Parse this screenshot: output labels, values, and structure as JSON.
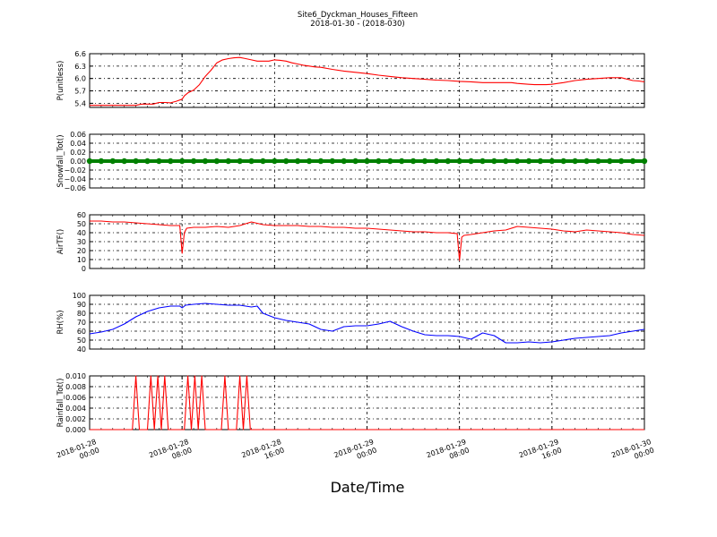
{
  "figure": {
    "title_line1": "Site6_Dyckman_Houses_Fifteen",
    "title_line2": "2018-01-30 - (2018-030)",
    "xlabel": "Date/Time"
  },
  "x_axis": {
    "ticks": [
      {
        "line1": "2018-01-28",
        "line2": "00:00",
        "hour": 0
      },
      {
        "line1": "2018-01-28",
        "line2": "08:00",
        "hour": 8
      },
      {
        "line1": "2018-01-28",
        "line2": "16:00",
        "hour": 16
      },
      {
        "line1": "2018-01-29",
        "line2": "00:00",
        "hour": 24
      },
      {
        "line1": "2018-01-29",
        "line2": "08:00",
        "hour": 32
      },
      {
        "line1": "2018-01-29",
        "line2": "16:00",
        "hour": 40
      },
      {
        "line1": "2018-01-30",
        "line2": "00:00",
        "hour": 48
      }
    ]
  },
  "colors": {
    "red": "#ff0000",
    "green": "#008000",
    "blue": "#0000ff",
    "grid": "#000000"
  },
  "chart_data": [
    {
      "type": "line",
      "ylabel": "P(unitless)",
      "ylim": [
        5.3,
        6.6
      ],
      "yticks": [
        5.4,
        5.7,
        6.0,
        6.3,
        6.6
      ],
      "ytick_labels": [
        "5.4",
        "5.7",
        "6.0",
        "6.3",
        "6.6"
      ],
      "grid": true,
      "color": "#ff0000",
      "x_hours": [
        0,
        1,
        2,
        3,
        3.8,
        4,
        4.5,
        5,
        5.5,
        6,
        6.3,
        6.6,
        7,
        7.5,
        8,
        8.2,
        8.5,
        9,
        9.5,
        10,
        10.5,
        11,
        11.5,
        12,
        12.5,
        13,
        13.5,
        14,
        14.5,
        15,
        15.5,
        16,
        16.5,
        17,
        17.5,
        18,
        18.5,
        19,
        19.5,
        20,
        21,
        22,
        23,
        24,
        25,
        26,
        27,
        28,
        29,
        30,
        31,
        32,
        33,
        34,
        35,
        36,
        36.5,
        37,
        37.5,
        38,
        38.5,
        39,
        39.5,
        40,
        40.5,
        41,
        42,
        43,
        44,
        45,
        46,
        47,
        47.5,
        48
      ],
      "values": [
        5.35,
        5.35,
        5.35,
        5.35,
        5.35,
        5.35,
        5.38,
        5.38,
        5.38,
        5.42,
        5.42,
        5.42,
        5.41,
        5.45,
        5.5,
        5.58,
        5.65,
        5.72,
        5.85,
        6.05,
        6.2,
        6.38,
        6.45,
        6.48,
        6.5,
        6.51,
        6.48,
        6.45,
        6.42,
        6.42,
        6.42,
        6.45,
        6.44,
        6.42,
        6.38,
        6.35,
        6.32,
        6.3,
        6.28,
        6.27,
        6.22,
        6.18,
        6.15,
        6.12,
        6.08,
        6.05,
        6.02,
        6.0,
        5.98,
        5.96,
        5.95,
        5.93,
        5.92,
        5.9,
        5.9,
        5.9,
        5.9,
        5.88,
        5.87,
        5.86,
        5.85,
        5.85,
        5.85,
        5.86,
        5.88,
        5.9,
        5.95,
        5.98,
        6.0,
        6.02,
        6.02,
        5.95,
        5.94,
        5.92
      ]
    },
    {
      "type": "scatter",
      "ylabel": "Snowfall_Tot()",
      "ylim": [
        -0.06,
        0.06
      ],
      "yticks": [
        -0.06,
        -0.04,
        -0.02,
        0.0,
        0.02,
        0.04,
        0.06
      ],
      "ytick_labels": [
        "−0.06",
        "−0.04",
        "−0.02",
        "0.00",
        "0.02",
        "0.04",
        "0.06"
      ],
      "grid": true,
      "color": "#008000",
      "x_hours": [
        0,
        1,
        2,
        3,
        4,
        5,
        6,
        7,
        8,
        9,
        10,
        11,
        12,
        13,
        14,
        15,
        16,
        17,
        18,
        19,
        20,
        21,
        22,
        23,
        24,
        25,
        26,
        27,
        28,
        29,
        30,
        31,
        32,
        33,
        34,
        35,
        36,
        37,
        38,
        39,
        40,
        41,
        42,
        43,
        44,
        45,
        46,
        47,
        48
      ],
      "values": [
        0,
        0,
        0,
        0,
        0,
        0,
        0,
        0,
        0,
        0,
        0,
        0,
        0,
        0,
        0,
        0,
        0,
        0,
        0,
        0,
        0,
        0,
        0,
        0,
        0,
        0,
        0,
        0,
        0,
        0,
        0,
        0,
        0,
        0,
        0,
        0,
        0,
        0,
        0,
        0,
        0,
        0,
        0,
        0,
        0,
        0,
        0,
        0,
        0
      ]
    },
    {
      "type": "line",
      "ylabel": "AirTF()",
      "ylim": [
        0,
        60
      ],
      "yticks": [
        0,
        10,
        20,
        30,
        40,
        50,
        60
      ],
      "ytick_labels": [
        "0",
        "10",
        "20",
        "30",
        "40",
        "50",
        "60"
      ],
      "grid": true,
      "color": "#ff0000",
      "x_hours": [
        0,
        1,
        2,
        3,
        4,
        5,
        6,
        7,
        7.8,
        8,
        8.2,
        8.4,
        9,
        10,
        11,
        12,
        13,
        14,
        15,
        16,
        17,
        18,
        19,
        20,
        21,
        22,
        23,
        24,
        25,
        26,
        27,
        28,
        29,
        30,
        31,
        31.8,
        32,
        32.2,
        32.4,
        33,
        34,
        35,
        36,
        37,
        38,
        39,
        40,
        41,
        42,
        43,
        44,
        45,
        46,
        47,
        48
      ],
      "values": [
        53,
        53,
        52,
        52,
        51,
        50,
        49,
        48,
        48,
        17,
        40,
        45,
        46,
        46,
        47,
        46,
        48,
        52,
        49,
        48,
        48,
        48,
        47,
        47,
        46,
        46,
        45,
        45,
        44,
        43,
        42,
        41,
        41,
        40,
        40,
        39,
        9,
        35,
        37,
        38,
        40,
        42,
        43,
        47,
        46,
        45,
        44,
        42,
        41,
        43,
        42,
        41,
        40,
        38,
        37
      ]
    },
    {
      "type": "line",
      "ylabel": "RH(%)",
      "ylim": [
        40,
        100
      ],
      "yticks": [
        40,
        50,
        60,
        70,
        80,
        90,
        100
      ],
      "ytick_labels": [
        "40",
        "50",
        "60",
        "70",
        "80",
        "90",
        "100"
      ],
      "grid": true,
      "color": "#0000ff",
      "x_hours": [
        0,
        1,
        2,
        3,
        4,
        5,
        6,
        7,
        7.8,
        8,
        8.3,
        9,
        10,
        11,
        12,
        13,
        14,
        14.5,
        15,
        16,
        17,
        18,
        19,
        20,
        21,
        22,
        23,
        24,
        25,
        26,
        27,
        28,
        29,
        30,
        31,
        32,
        33,
        34,
        35,
        36,
        37,
        38,
        39,
        40,
        41,
        42,
        43,
        44,
        45,
        46,
        47,
        48
      ],
      "values": [
        57,
        59,
        62,
        68,
        76,
        82,
        86,
        88,
        88,
        86,
        89,
        90,
        91,
        90,
        89,
        89,
        87,
        88,
        80,
        75,
        72,
        70,
        68,
        62,
        60,
        65,
        66,
        66,
        68,
        71,
        65,
        60,
        56,
        55,
        55,
        54,
        51,
        58,
        55,
        47,
        47,
        48,
        47,
        48,
        50,
        52,
        53,
        54,
        55,
        58,
        60,
        62
      ]
    },
    {
      "type": "line",
      "ylabel": "Rainfall_Tot()",
      "ylim": [
        0,
        0.01
      ],
      "yticks": [
        0.0,
        0.002,
        0.004,
        0.006,
        0.008,
        0.01
      ],
      "ytick_labels": [
        "0.000",
        "0.002",
        "0.004",
        "0.006",
        "0.008",
        "0.010"
      ],
      "grid": true,
      "color": "#ff0000",
      "x_hours": [
        0,
        3.7,
        4.0,
        4.3,
        5.0,
        5.3,
        5.6,
        5.9,
        6.2,
        6.5,
        6.8,
        7.1,
        8.2,
        8.5,
        8.8,
        9.1,
        9.4,
        9.7,
        10.0,
        10.3,
        10.6,
        11.4,
        11.7,
        12.0,
        12.7,
        13.0,
        13.3,
        13.6,
        13.9,
        14.2,
        48
      ],
      "values": [
        0,
        0,
        0.01,
        0,
        0,
        0.01,
        0,
        0.01,
        0,
        0.01,
        0,
        0,
        0,
        0.01,
        0,
        0.01,
        0,
        0.01,
        0,
        0,
        0,
        0,
        0.01,
        0,
        0,
        0.01,
        0,
        0.01,
        0,
        0,
        0
      ]
    }
  ]
}
